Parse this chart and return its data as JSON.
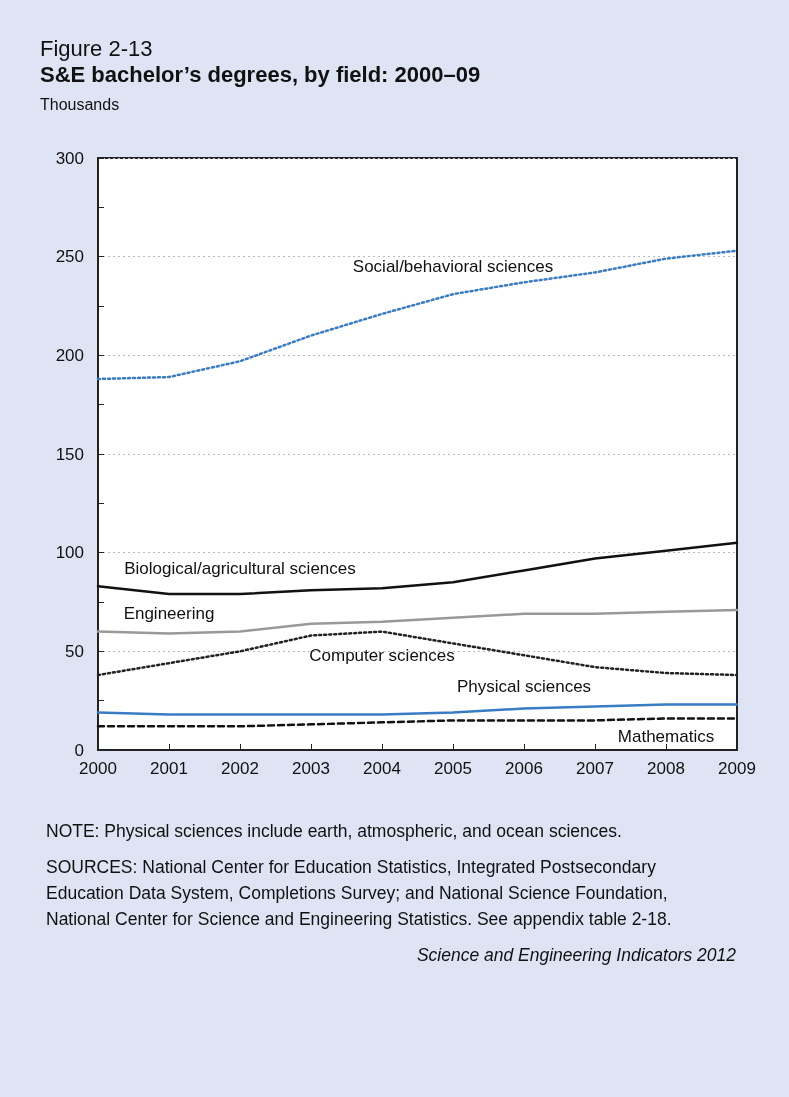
{
  "chart_data": {
    "type": "line",
    "title": "Figure 2-13",
    "subtitle": "S&E bachelor’s degrees, by field: 2000–09",
    "ylabel": "Thousands",
    "categories": [
      "2000",
      "2001",
      "2002",
      "2003",
      "2004",
      "2005",
      "2006",
      "2007",
      "2008",
      "2009"
    ],
    "ylim": [
      0,
      300
    ],
    "yticks": [
      0,
      50,
      100,
      150,
      200,
      250,
      300
    ],
    "grid": "y",
    "legend": false,
    "marker": "none",
    "series": [
      {
        "name": "Social/behavioral sciences",
        "color": "#3a7cc4",
        "line_style": "dotted",
        "values": [
          188,
          189,
          197,
          210,
          221,
          231,
          237,
          242,
          249,
          253
        ]
      },
      {
        "name": "Biological/agricultural sciences",
        "color": "#111111",
        "line_style": "solid",
        "values": [
          83,
          79,
          79,
          81,
          82,
          85,
          91,
          97,
          101,
          105
        ]
      },
      {
        "name": "Engineering",
        "color": "#999999",
        "line_style": "solid",
        "values": [
          60,
          59,
          60,
          64,
          65,
          67,
          69,
          69,
          70,
          71
        ]
      },
      {
        "name": "Computer sciences",
        "color": "#222222",
        "line_style": "dotted",
        "values": [
          38,
          44,
          50,
          58,
          60,
          54,
          48,
          42,
          39,
          38
        ]
      },
      {
        "name": "Physical sciences",
        "color": "#3a7cc4",
        "line_style": "solid",
        "values": [
          19,
          18,
          18,
          18,
          18,
          19,
          21,
          22,
          23,
          23
        ]
      },
      {
        "name": "Mathematics",
        "color": "#111111",
        "line_style": "dashed",
        "values": [
          12,
          12,
          12,
          13,
          14,
          15,
          15,
          15,
          16,
          16
        ]
      }
    ],
    "annotations": [
      "NOTE: Physical sciences include earth, atmospheric, and ocean sciences.",
      "SOURCES: National Center for Education Statistics, Integrated Postsecondary Education Data System, Completions Survey; and National Science Foundation, National Center for Science and Engineering Statistics. See appendix table 2-18.",
      "Science and Engineering Indicators 2012"
    ]
  }
}
